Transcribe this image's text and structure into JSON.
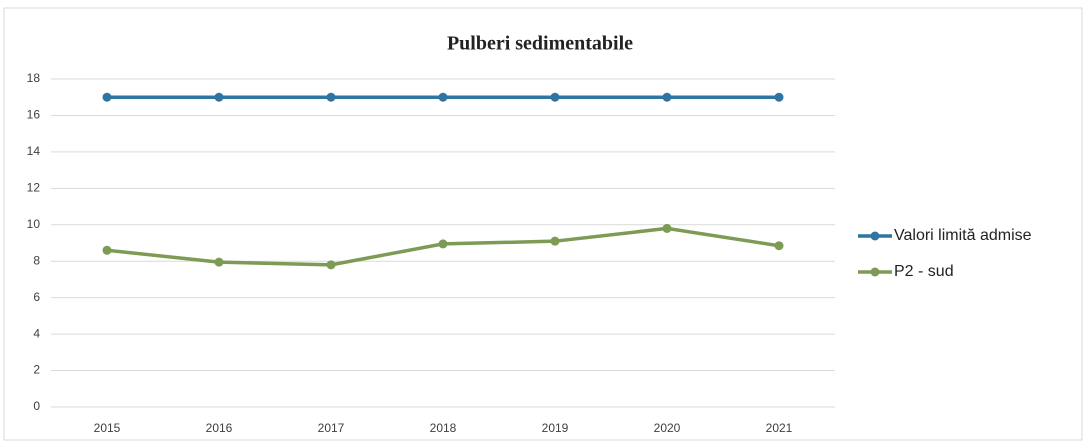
{
  "chart_data": {
    "type": "line",
    "title": "Pulberi sedimentabile",
    "categories": [
      "2015",
      "2016",
      "2017",
      "2018",
      "2019",
      "2020",
      "2021"
    ],
    "series": [
      {
        "name": "Valori limită admise",
        "color": "#2f75a1",
        "values": [
          17,
          17,
          17,
          17,
          17,
          17,
          17
        ]
      },
      {
        "name": "P2 - sud",
        "color": "#7d9b55",
        "values": [
          8.6,
          7.95,
          7.8,
          8.95,
          9.1,
          9.8,
          8.85
        ]
      }
    ],
    "ylim": [
      0,
      18
    ],
    "yticks": [
      0,
      2,
      4,
      6,
      8,
      10,
      12,
      14,
      16,
      18
    ],
    "grid": true,
    "legend": "right"
  }
}
